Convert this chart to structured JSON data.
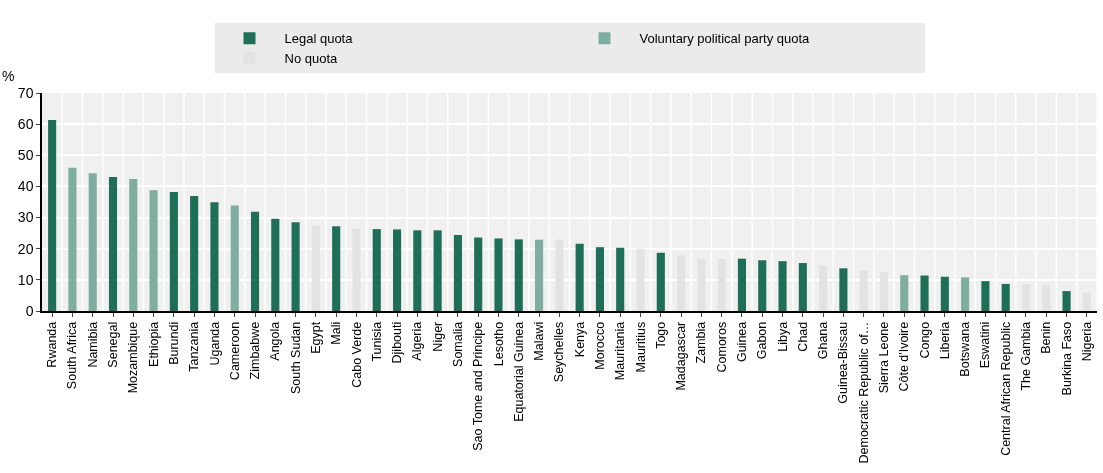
{
  "chart_data": {
    "type": "bar",
    "ylabel": "%",
    "categories": [
      "Rwanda",
      "South Africa",
      "Namibia",
      "Senegal",
      "Mozambique",
      "Ethiopia",
      "Burundi",
      "Tanzania",
      "Uganda",
      "Cameroon",
      "Zimbabwe",
      "Angola",
      "South Sudan",
      "Egypt",
      "Mali",
      "Cabo Verde",
      "Tunisia",
      "Djibouti",
      "Algeria",
      "Niger",
      "Somalia",
      "Sao Tome and Principe",
      "Lesotho",
      "Equatorial Guinea",
      "Malawi",
      "Seychelles",
      "Kenya",
      "Morocco",
      "Mauritania",
      "Mauritius",
      "Togo",
      "Madagascar",
      "Zambia",
      "Comoros",
      "Guinea",
      "Gabon",
      "Libya",
      "Chad",
      "Ghana",
      "Guinea-Bissau",
      "Democratic Republic of…",
      "Sierra Leone",
      "Côte d'Ivoire",
      "Congo",
      "Liberia",
      "Botswana",
      "Eswatini",
      "Central African Republic",
      "The Gambia",
      "Benin",
      "Burkina Faso",
      "Nigeria"
    ],
    "series": [
      {
        "name": "Legal quota",
        "color": "#1f6e58",
        "values": [
          61.3,
          null,
          null,
          43,
          null,
          null,
          38.2,
          36.9,
          34.9,
          null,
          31.9,
          29.6,
          28.5,
          null,
          27.2,
          null,
          26.3,
          26.2,
          25.9,
          25.9,
          24.4,
          23.6,
          23.3,
          23,
          null,
          null,
          21.6,
          20.5,
          20.3,
          null,
          18.7,
          null,
          null,
          null,
          16.8,
          16.3,
          16,
          15.4,
          null,
          13.7,
          null,
          null,
          null,
          11.4,
          11,
          null,
          9.6,
          8.7,
          null,
          null,
          6.4,
          null
        ]
      },
      {
        "name": "Voluntary political party quota",
        "color": "#7fad9f",
        "values": [
          null,
          46,
          44.2,
          null,
          42.4,
          38.8,
          null,
          null,
          null,
          33.9,
          null,
          null,
          null,
          null,
          null,
          null,
          null,
          null,
          null,
          null,
          null,
          null,
          null,
          null,
          22.9,
          null,
          null,
          null,
          null,
          null,
          null,
          null,
          null,
          null,
          null,
          null,
          null,
          null,
          null,
          null,
          null,
          null,
          11.5,
          null,
          null,
          10.8,
          null,
          null,
          null,
          null,
          null,
          null
        ]
      },
      {
        "name": "No quota",
        "color": "#e3e3e3",
        "values": [
          null,
          null,
          null,
          null,
          null,
          null,
          null,
          null,
          null,
          null,
          null,
          null,
          null,
          27.4,
          null,
          26.4,
          null,
          null,
          null,
          null,
          null,
          null,
          null,
          null,
          null,
          22.9,
          null,
          null,
          null,
          20,
          null,
          17.9,
          16.8,
          16.7,
          null,
          null,
          null,
          null,
          14.7,
          null,
          12.9,
          12.4,
          null,
          null,
          null,
          null,
          null,
          null,
          8.7,
          8.4,
          null,
          5.9
        ]
      }
    ],
    "ylim": [
      0,
      70
    ],
    "yticks": [
      0,
      10,
      20,
      30,
      40,
      50,
      60,
      70
    ],
    "grid": true,
    "legend": "top"
  }
}
